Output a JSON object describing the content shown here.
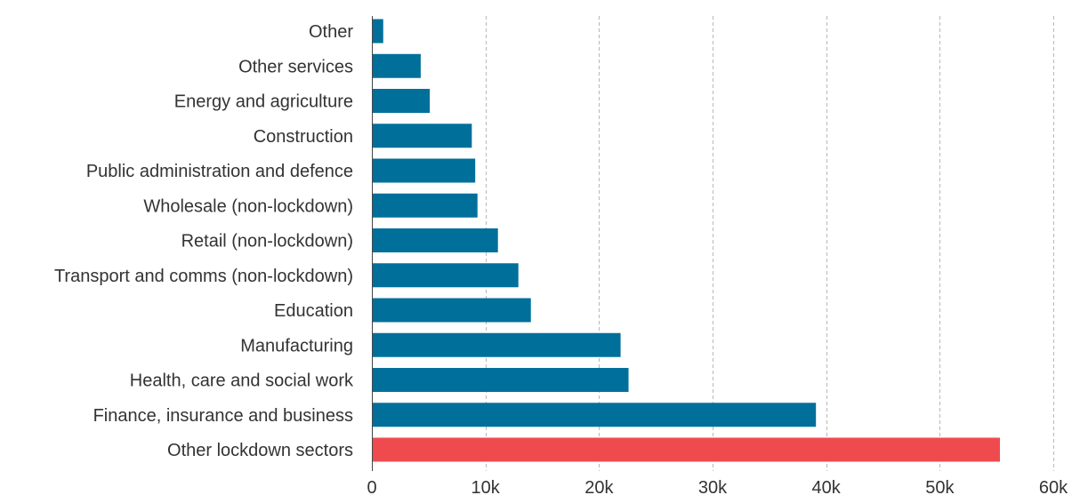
{
  "chart_data": {
    "type": "bar",
    "orientation": "horizontal",
    "categories": [
      "Other",
      "Other services",
      "Energy and agriculture",
      "Construction",
      "Public administration and defence",
      "Wholesale (non-lockdown)",
      "Retail (non-lockdown)",
      "Transport and comms (non-lockdown)",
      "Education",
      "Manufacturing",
      "Health, care and social work",
      "Finance, insurance and business",
      "Other lockdown sectors"
    ],
    "values": [
      1000,
      4300,
      5100,
      8800,
      9100,
      9300,
      11100,
      12900,
      14000,
      21900,
      22600,
      39100,
      55300
    ],
    "highlight_index": 12,
    "xlim": [
      0,
      60000
    ],
    "xticks": [
      0,
      10000,
      20000,
      30000,
      40000,
      50000,
      60000
    ],
    "xtick_labels": [
      "0",
      "10k",
      "20k",
      "30k",
      "40k",
      "50k",
      "60k"
    ],
    "title": "",
    "xlabel": "",
    "ylabel": "",
    "grid": "vertical dashed",
    "legend": "none",
    "colors": {
      "bar": "#00709b",
      "highlight": "#ef4b4f",
      "text": "#333333",
      "grid": "#b8b8b8"
    }
  }
}
